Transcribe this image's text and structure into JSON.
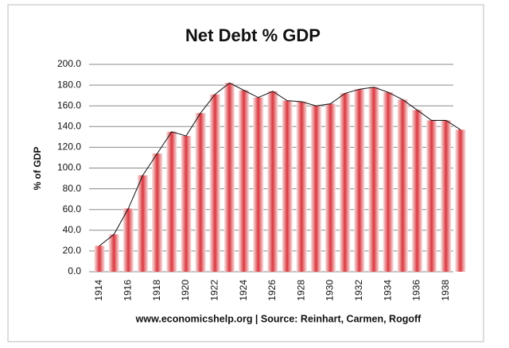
{
  "chart_data": {
    "type": "bar",
    "title": "Net Debt % GDP",
    "y_label": "% of GDP",
    "source": "www.economicshelp.org | Source: Reinhart, Carmen, Rogoff",
    "categories": [
      "1914",
      null,
      "1916",
      null,
      "1918",
      null,
      "1920",
      null,
      "1922",
      null,
      "1924",
      null,
      "1926",
      null,
      "1928",
      null,
      "1930",
      null,
      "1932",
      null,
      "1934",
      null,
      "1936",
      null,
      "1938",
      null
    ],
    "values": [
      25,
      36,
      61,
      93,
      114,
      135,
      131,
      153,
      171,
      182,
      175,
      168,
      174,
      165,
      164,
      160,
      162,
      172,
      176,
      178,
      173,
      166,
      156,
      146,
      146,
      137
    ],
    "color": "#d9383f",
    "line_color": "#111111",
    "line_overlay": true,
    "ylim": [
      0,
      200
    ],
    "yticks": [
      {
        "value": 0,
        "label": "0.0"
      },
      {
        "value": 20,
        "label": "20.0"
      },
      {
        "value": 40,
        "label": "40.0"
      },
      {
        "value": 60,
        "label": "60.0"
      },
      {
        "value": 80,
        "label": "80.0"
      },
      {
        "value": 100,
        "label": "100.0"
      },
      {
        "value": 120,
        "label": "120.0"
      },
      {
        "value": 140,
        "label": "140.0"
      },
      {
        "value": 160,
        "label": "160.0"
      },
      {
        "value": 180,
        "label": "180.0"
      },
      {
        "value": 200,
        "label": "200.0"
      }
    ],
    "grid": true
  }
}
